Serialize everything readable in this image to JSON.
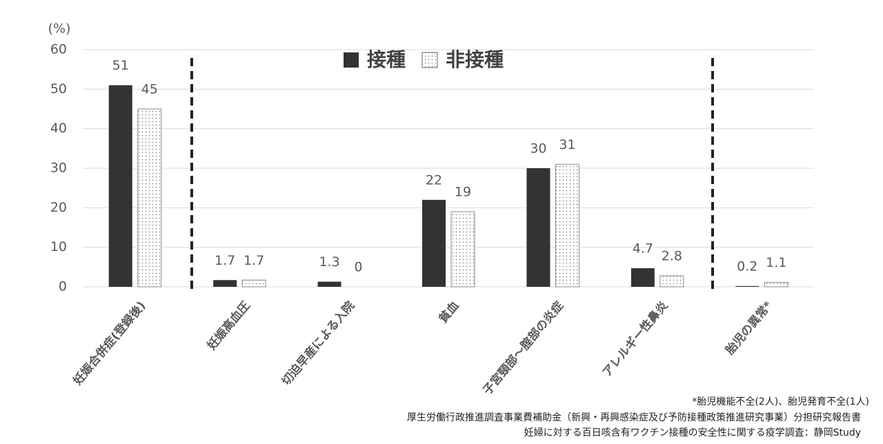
{
  "chart_data": {
    "type": "bar",
    "y_label": "(%)",
    "categories": [
      "妊娠合併症(登録後)",
      "妊娠高血圧",
      "切迫早産による入院",
      "貧血",
      "子宮頸部～腟部の炎症",
      "アレルギー性鼻炎",
      "胎児の異常*"
    ],
    "series": [
      {
        "name": "接種",
        "color": "#333333",
        "values": [
          51,
          1.7,
          1.3,
          22,
          30,
          4.7,
          0.2
        ]
      },
      {
        "name": "非接種",
        "color": "#ffffff",
        "pattern": "dotted",
        "values": [
          45,
          1.7,
          0,
          19,
          31,
          2.8,
          1.1
        ]
      }
    ],
    "ylim": [
      0,
      60
    ],
    "yticks": [
      0,
      10,
      20,
      30,
      40,
      50,
      60
    ],
    "grid": true,
    "legend": "top",
    "notes": [
      "*胎児機能不全(2人)、胎児発育不全(1人)",
      "厚生労働行政推進調査事業費補助金（新興・再興感染症及び予防接種政策推進研究事業）分担研究報告書",
      "妊婦に対する百日咳含有ワクチン接種の安全性に関する疫学調査：静岡Study"
    ]
  }
}
